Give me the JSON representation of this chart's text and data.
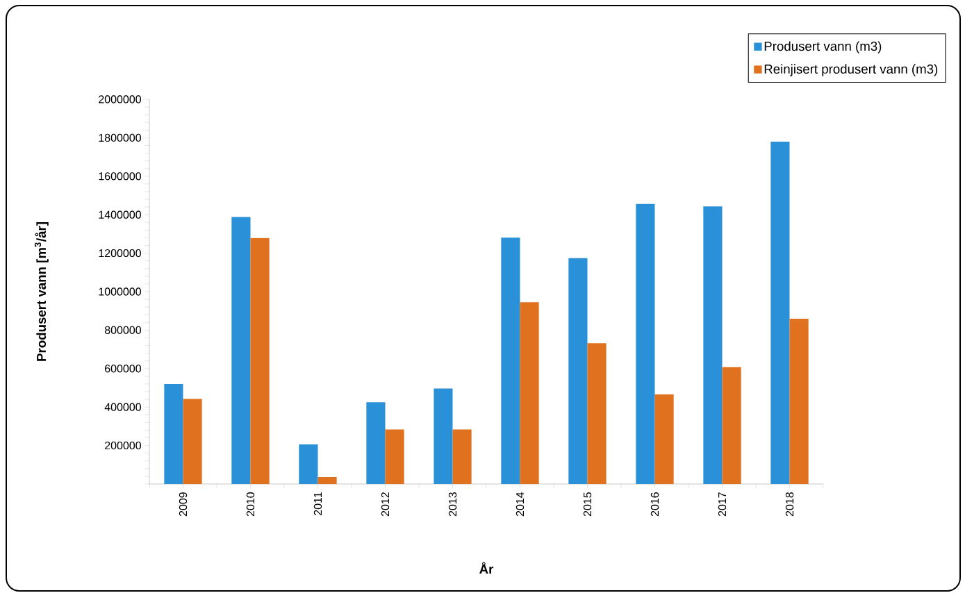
{
  "chart_data": {
    "type": "bar",
    "xlabel": "År",
    "ylabel": "Produsert vann [m$^{3}$/år]",
    "categories": [
      "2009",
      "2010",
      "2011",
      "2012",
      "2013",
      "2014",
      "2015",
      "2016",
      "2017",
      "2018"
    ],
    "series": [
      {
        "name": "Produsert vann (m3)",
        "color": "#2a90d8",
        "values": [
          520000,
          1388000,
          206000,
          425000,
          496000,
          1281000,
          1174000,
          1456000,
          1443000,
          1780000
        ]
      },
      {
        "name": "Reinjisert produsert vann (m3)",
        "color": "#e0711f",
        "values": [
          442000,
          1279000,
          36000,
          283000,
          283000,
          945000,
          732000,
          466000,
          607000,
          859000
        ]
      }
    ],
    "ylim": [
      0,
      2000000
    ],
    "yticks": [
      {
        "value": 0,
        "label": null
      },
      200000,
      400000,
      600000,
      800000,
      1000000,
      1200000,
      1400000,
      1600000,
      1800000,
      2000000
    ],
    "legend": "top right"
  }
}
